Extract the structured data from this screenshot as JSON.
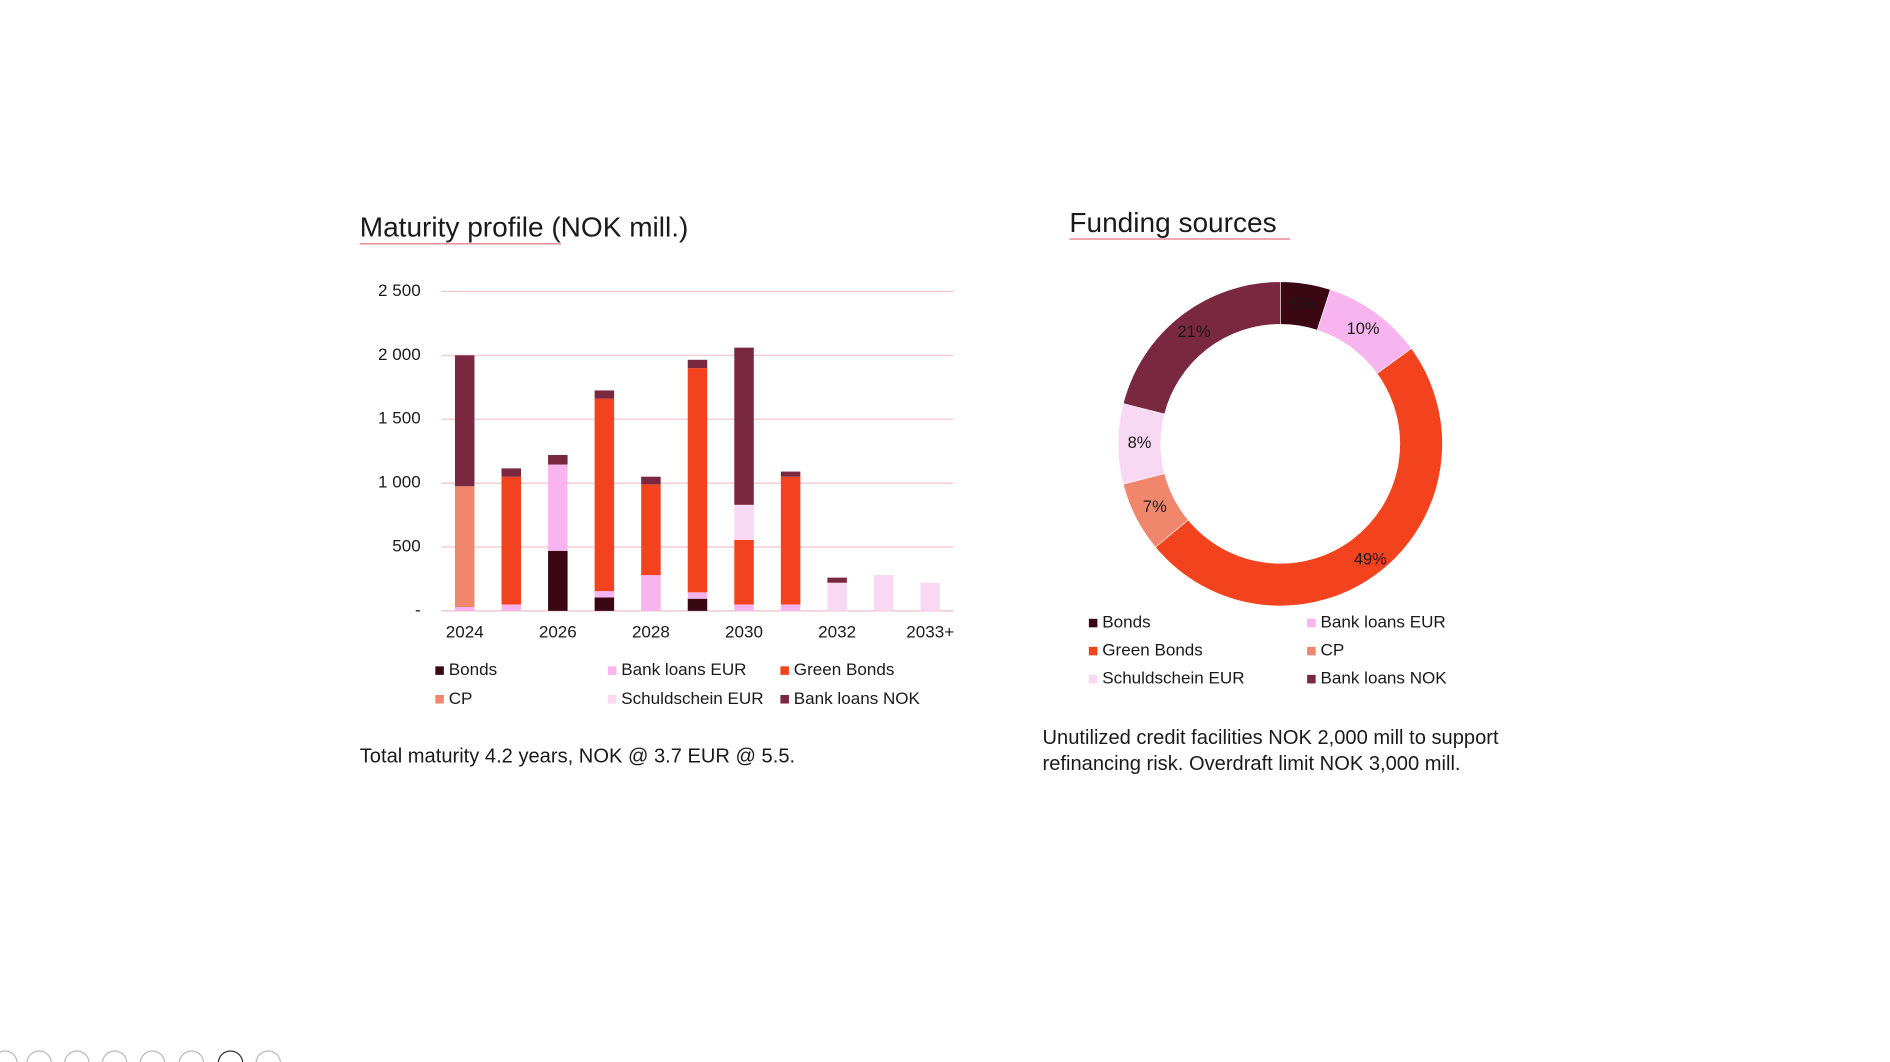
{
  "chart_data": [
    {
      "type": "bar",
      "stacked": true,
      "title": "Maturity profile (NOK mill.)",
      "annotation": [
        "Total maturity 4.2 years, NOK @ 3.7 EUR @ 5.5."
      ],
      "categories": [
        "2024",
        null,
        "2026",
        null,
        "2028",
        null,
        "2030",
        null,
        "2032",
        null,
        "2033+"
      ],
      "ylim": [
        0,
        2500
      ],
      "yticks": [
        {
          "value": 0,
          "label": "-"
        },
        500,
        {
          "value": 1000,
          "label": "1 000"
        },
        {
          "value": 1500,
          "label": "1 500"
        },
        {
          "value": 2000,
          "label": "2 000"
        },
        {
          "value": 2500,
          "label": "2 500"
        }
      ],
      "grid": true,
      "legend": "bottom",
      "series": [
        {
          "name": "Bonds",
          "color": "#3a0812",
          "values": [
            0,
            0,
            470,
            105,
            0,
            95,
            0,
            0,
            0,
            0,
            0
          ]
        },
        {
          "name": "Bank loans EUR",
          "color": "#f8b4ee",
          "values": [
            30,
            50,
            675,
            50,
            280,
            50,
            50,
            50,
            0,
            0,
            0
          ]
        },
        {
          "name": "Green Bonds",
          "color": "#f2431e",
          "values": [
            0,
            1000,
            0,
            1505,
            710,
            1755,
            505,
            1000,
            0,
            0,
            0
          ]
        },
        {
          "name": "CP",
          "color": "#f0876c",
          "values": [
            945,
            0,
            0,
            0,
            0,
            0,
            0,
            0,
            0,
            0,
            0
          ]
        },
        {
          "name": "Schuldschein EUR",
          "color": "#f8d8f2",
          "values": [
            0,
            0,
            0,
            0,
            0,
            0,
            275,
            0,
            220,
            280,
            220
          ]
        },
        {
          "name": "Bank loans NOK",
          "color": "#7a2840",
          "values": [
            1025,
            65,
            75,
            65,
            60,
            65,
            1230,
            40,
            40,
            0,
            0
          ]
        }
      ]
    },
    {
      "type": "donut",
      "title": "Funding sources",
      "annotation": [
        "Unutilized credit facilities NOK 2,000 mill to support",
        "refinancing risk. Overdraft limit NOK 3,000 mill."
      ],
      "categories": [
        "Bonds",
        "Bank loans EUR",
        "Green Bonds",
        "CP",
        "Schuldschein EUR",
        "Bank loans NOK"
      ],
      "values": [
        5,
        10,
        49,
        7,
        8,
        21
      ],
      "value_labels": [
        "5%",
        "10%",
        "49%",
        "7%",
        "8%",
        "21%"
      ],
      "colors": [
        "#3a0812",
        "#f8b4ee",
        "#f2431e",
        "#f0876c",
        "#f8d8f2",
        "#7a2840"
      ],
      "legend": "bottom"
    }
  ]
}
